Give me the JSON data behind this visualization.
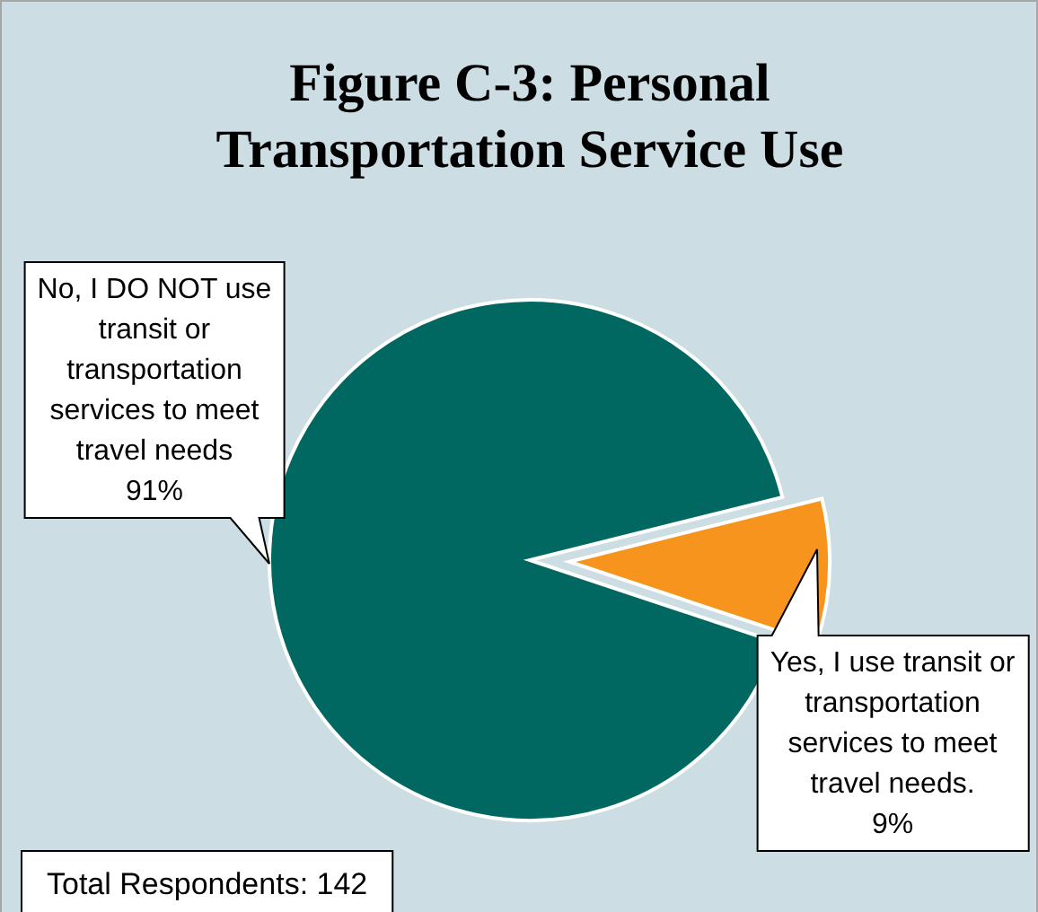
{
  "chart_data": {
    "type": "pie",
    "title": "Figure C-3: Personal Transportation Service Use",
    "categories": [
      "Yes, I use transit or transportation services to meet travel needs.",
      "No, I DO NOT use transit or transportation services to meet travel needs"
    ],
    "values": [
      9,
      91
    ],
    "value_labels": [
      "9%",
      "91%"
    ],
    "colors": [
      "#f7941d",
      "#006860"
    ],
    "annotations": [
      "Total Respondents: 142"
    ]
  }
}
